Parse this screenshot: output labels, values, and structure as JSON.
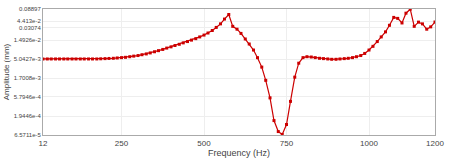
{
  "chart_data": {
    "type": "line",
    "xlabel": "Frequency (Hz)",
    "ylabel": "Amplitude (mm)",
    "log": "y",
    "grid": true,
    "marker": "square",
    "color": "#cc0000",
    "xlim": [
      12,
      1200
    ],
    "ylim": [
      6.5711e-05,
      0.08897
    ],
    "xticks": [
      12,
      250,
      500,
      750,
      1000,
      1200
    ],
    "yticks": [
      {
        "value": 6.5711e-05,
        "label": "6.5711e-5"
      },
      {
        "value": 0.00019446,
        "label": "1.9446e-4"
      },
      {
        "value": 0.00057946,
        "label": "5.7946e-4"
      },
      {
        "value": 0.0017008,
        "label": "1.7008e-3"
      },
      {
        "value": 0.0050427,
        "label": "5.0427e-3"
      },
      {
        "value": 0.014926,
        "label": "1.4926e-2"
      },
      {
        "value": 0.04413,
        "label": "4.413e-2"
      },
      0.03074,
      0.08897
    ],
    "x": [
      12,
      25,
      37,
      50,
      62,
      75,
      87,
      100,
      112,
      125,
      137,
      150,
      162,
      175,
      187,
      200,
      212,
      225,
      237,
      250,
      262,
      275,
      287,
      300,
      312,
      325,
      337,
      350,
      362,
      375,
      387,
      400,
      412,
      425,
      437,
      450,
      462,
      475,
      487,
      500,
      512,
      525,
      537,
      550,
      562,
      575,
      587,
      600,
      612,
      625,
      637,
      650,
      662,
      675,
      687,
      700,
      712,
      725,
      737,
      750,
      762,
      775,
      787,
      800,
      812,
      825,
      837,
      850,
      862,
      875,
      887,
      900,
      912,
      925,
      937,
      950,
      962,
      975,
      987,
      1000,
      1012,
      1025,
      1037,
      1050,
      1062,
      1075,
      1087,
      1100,
      1112,
      1125,
      1137,
      1150,
      1162,
      1175,
      1187,
      1200
    ],
    "values": [
      0.0051,
      0.0051,
      0.0051,
      0.0051,
      0.0051,
      0.0051,
      0.0051,
      0.0051,
      0.0051,
      0.0051,
      0.0051,
      0.0051,
      0.0051,
      0.0051,
      0.00515,
      0.0052,
      0.00525,
      0.0053,
      0.0054,
      0.0055,
      0.0056,
      0.0058,
      0.006,
      0.0062,
      0.0065,
      0.0068,
      0.0072,
      0.0077,
      0.0082,
      0.0088,
      0.0095,
      0.0102,
      0.011,
      0.0118,
      0.0128,
      0.0138,
      0.015,
      0.0163,
      0.018,
      0.02,
      0.0225,
      0.026,
      0.031,
      0.038,
      0.05,
      0.065,
      0.033,
      0.028,
      0.022,
      0.016,
      0.012,
      0.0085,
      0.0055,
      0.0032,
      0.0015,
      0.00055,
      0.00015,
      8e-05,
      6.8e-05,
      0.00012,
      0.00045,
      0.0018,
      0.004,
      0.0055,
      0.0058,
      0.0057,
      0.0055,
      0.0053,
      0.0052,
      0.0051,
      0.005,
      0.005,
      0.0051,
      0.0052,
      0.0053,
      0.0055,
      0.0058,
      0.0062,
      0.007,
      0.0085,
      0.0105,
      0.0138,
      0.018,
      0.024,
      0.035,
      0.055,
      0.052,
      0.04,
      0.07,
      0.088,
      0.033,
      0.042,
      0.038,
      0.028,
      0.032,
      0.042
    ]
  }
}
